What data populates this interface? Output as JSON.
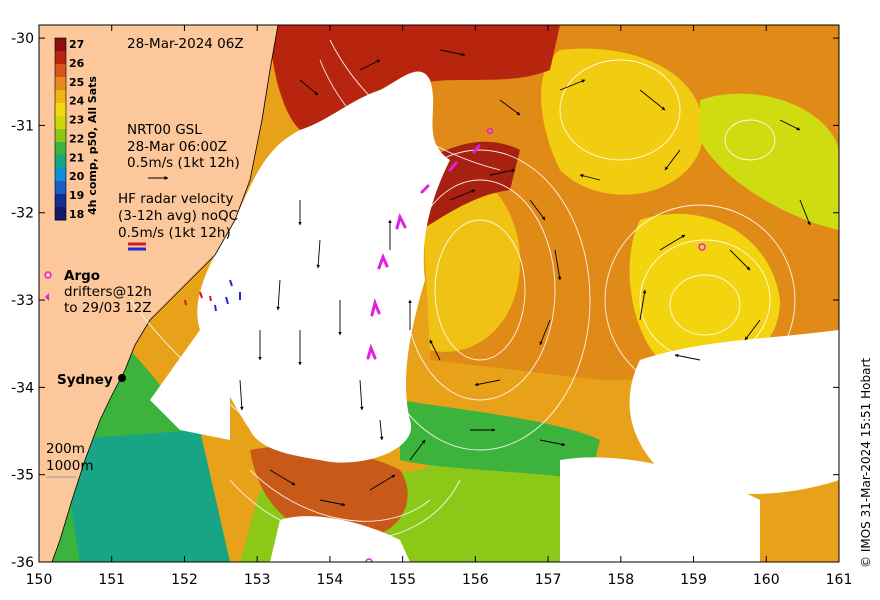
{
  "map": {
    "timestamp": "28-Mar-2024 06Z",
    "credit": "© IMOS 31-Mar-2024 15:51 Hobart",
    "x_ticks": [
      "150",
      "151",
      "152",
      "153",
      "154",
      "155",
      "156",
      "157",
      "158",
      "159",
      "160",
      "161"
    ],
    "y_ticks": [
      "-30",
      "-31",
      "-32",
      "-33",
      "-34",
      "-35",
      "-36"
    ],
    "lon_range": [
      150,
      161
    ],
    "lat_range": [
      -36,
      -29.85
    ],
    "colorbar": {
      "title": "4h comp, p50, All Sats",
      "ticks": [
        "27",
        "26",
        "25",
        "24",
        "23",
        "22",
        "21",
        "20",
        "19",
        "18"
      ],
      "colors": [
        "#8b0f0f",
        "#b8250f",
        "#d8561a",
        "#e88a1b",
        "#f0b512",
        "#f1d90f",
        "#c9d90e",
        "#8cc817",
        "#3cb33c",
        "#17a586",
        "#0c8fd6",
        "#1a5cc8",
        "#162f8f",
        "#121b66"
      ]
    },
    "legend": {
      "nrt_title": "NRT00 GSL",
      "nrt_time": "28-Mar 06:00Z",
      "nrt_scale": "0.5m/s (1kt 12h)",
      "hf_title": "HF radar velocity",
      "hf_sub": "(3-12h avg) noQC",
      "hf_scale": "0.5m/s (1kt 12h)",
      "argo": "Argo",
      "drifters_1": "drifters@12h",
      "drifters_2": "to 29/03 12Z",
      "city": "Sydney",
      "depth_1": "200m",
      "depth_2": "1000m"
    },
    "colors": {
      "land": "#fcc79a",
      "no_data": "#ffffff",
      "argo": "#e020e0",
      "drifter": "#e020e0"
    }
  }
}
